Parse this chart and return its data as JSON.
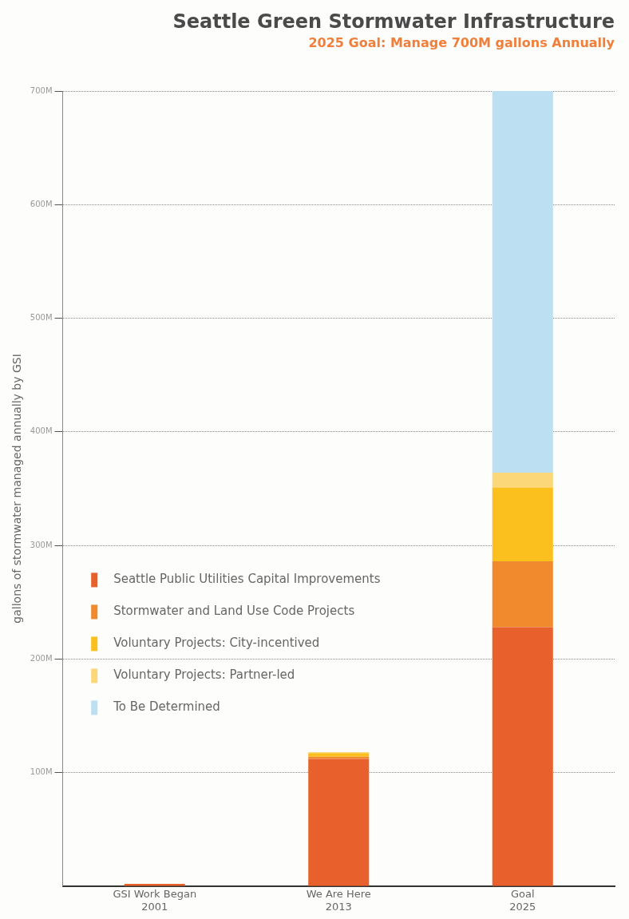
{
  "chart_data": {
    "type": "bar",
    "title": "Seattle Green Stormwater Infrastructure",
    "subtitle": "2025 Goal: Manage 700M gallons Annually",
    "ylabel": "gallons of stormwater managed annually by GSI",
    "categories": [
      "GSI Work Began\n2001",
      "We Are Here\n2013",
      "Goal\n2025"
    ],
    "stacked": true,
    "series": [
      {
        "name": "Seattle Public Utilities Capital Improvements",
        "color": "#e8602c",
        "values": [
          2,
          112,
          228
        ]
      },
      {
        "name": "Stormwater and Land Use Code Projects",
        "color": "#f08a2c",
        "values": [
          0,
          2,
          58
        ]
      },
      {
        "name": "Voluntary Projects: City-incentived",
        "color": "#fbbf1e",
        "values": [
          0,
          3,
          65
        ]
      },
      {
        "name": "Voluntary Projects: Partner-led",
        "color": "#fcd77a",
        "values": [
          0,
          1,
          13
        ]
      },
      {
        "name": "To Be Determined",
        "color": "#bcdff2",
        "values": [
          0,
          0,
          336
        ]
      }
    ],
    "ylim": [
      0,
      700
    ],
    "yticks": [
      {
        "value": 100,
        "label": "100M"
      },
      {
        "value": 200,
        "label": "200M"
      },
      {
        "value": 300,
        "label": "300M"
      },
      {
        "value": 400,
        "label": "400M"
      },
      {
        "value": 500,
        "label": "500M"
      },
      {
        "value": 600,
        "label": "600M"
      },
      {
        "value": 700,
        "label": "700M"
      }
    ],
    "grid": "y",
    "legend": "left"
  }
}
